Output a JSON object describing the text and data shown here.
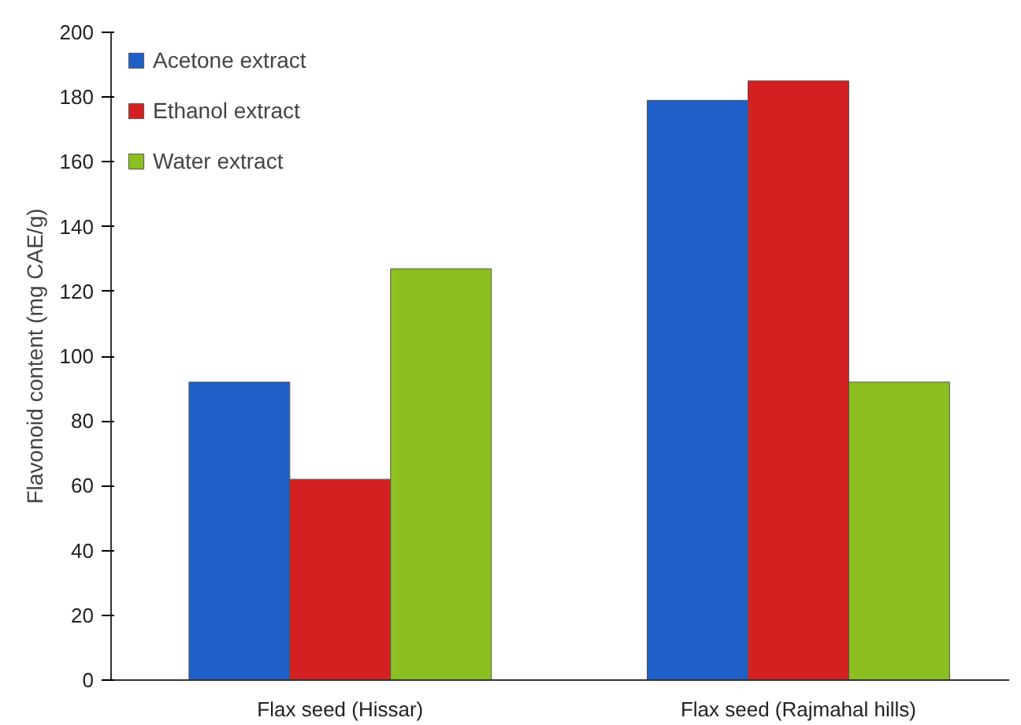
{
  "chart_data": {
    "type": "bar",
    "ylabel": "Flavonoid content (mg CAE/g)",
    "categories": [
      "Flax seed (Hissar)",
      "Flax seed (Rajmahal hills)"
    ],
    "series": [
      {
        "name": "Acetone extract",
        "color": "#1f5fc8",
        "values": [
          92,
          179
        ]
      },
      {
        "name": "Ethanol extract",
        "color": "#d42020",
        "values": [
          62,
          185
        ]
      },
      {
        "name": "Water extract",
        "color": "#8cc020",
        "values": [
          127,
          92
        ]
      }
    ],
    "ylim": [
      0,
      200
    ],
    "yticks": [
      0,
      20,
      40,
      60,
      80,
      100,
      120,
      140,
      160,
      180,
      200
    ],
    "grid": false,
    "legend": "top left"
  }
}
